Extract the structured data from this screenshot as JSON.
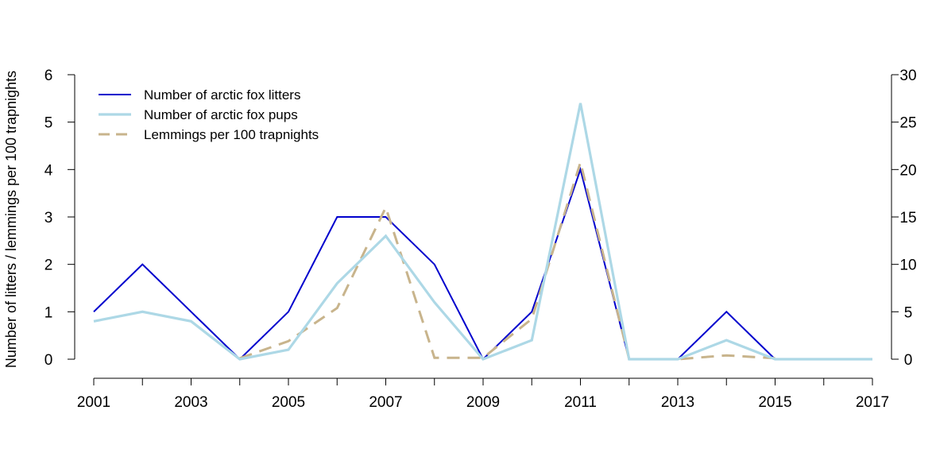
{
  "chart_data": {
    "type": "line",
    "title": "",
    "xlabel": "",
    "ylabel": "Number of litters / lemmings per 100 trapnights",
    "x": [
      2001,
      2002,
      2003,
      2004,
      2005,
      2006,
      2007,
      2008,
      2009,
      2010,
      2011,
      2012,
      2013,
      2014,
      2015,
      2016,
      2017
    ],
    "x_tick_labels": [
      "2001",
      "2003",
      "2005",
      "2007",
      "2009",
      "2011",
      "2013",
      "2015",
      "2017"
    ],
    "y_left_ticks": [
      "0",
      "1",
      "2",
      "3",
      "4",
      "5",
      "6"
    ],
    "y_right_ticks": [
      "0",
      "5",
      "10",
      "15",
      "20",
      "25",
      "30"
    ],
    "ylim_left": [
      0,
      6
    ],
    "ylim_right": [
      0,
      30
    ],
    "xlim": [
      2001,
      2017
    ],
    "grid": false,
    "legend_position": "top-left",
    "series": [
      {
        "name": "Number of arctic fox litters",
        "axis": "left",
        "color": "#0000cd",
        "style": "solid",
        "values": [
          1,
          2,
          1,
          0,
          1,
          3,
          3,
          2,
          0,
          1,
          4,
          0,
          0,
          1,
          0,
          0,
          0
        ]
      },
      {
        "name": "Number of arctic fox pups",
        "axis": "right",
        "color": "#add8e6",
        "style": "solid",
        "values": [
          4,
          5,
          4,
          0,
          1,
          8,
          13,
          6,
          0,
          2,
          27,
          0,
          0,
          2,
          0,
          0,
          0
        ]
      },
      {
        "name": "Lemmings per 100 trapnights",
        "axis": "left",
        "color": "#c8b48c",
        "style": "dashed",
        "values": [
          null,
          null,
          null,
          0.02,
          0.38,
          1.08,
          3.2,
          0.03,
          0.03,
          0.85,
          4.15,
          0.0,
          0.0,
          0.08,
          0.02,
          null,
          null
        ]
      }
    ]
  }
}
